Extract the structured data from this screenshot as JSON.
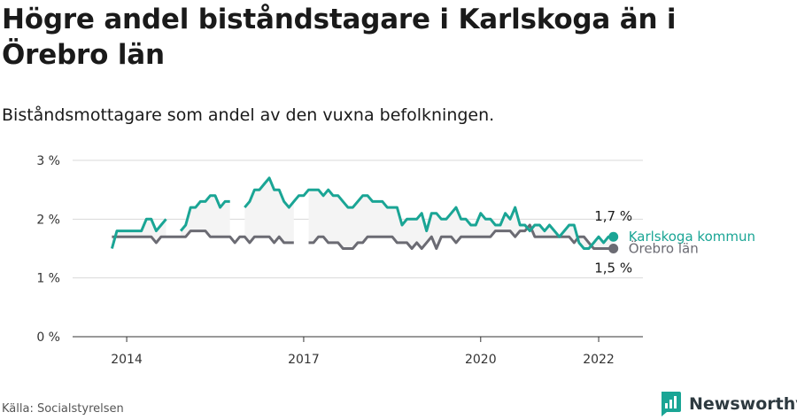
{
  "title": "Högre andel biståndstagare i Karlskoga än i Örebro län",
  "subtitle": "Biståndsmottagare som andel av den vuxna befolkningen.",
  "source": "Källa: Socialstyrelsen",
  "brand": "Newsworthy",
  "colors": {
    "karlskoga": "#1aa595",
    "orebro": "#6b6b73",
    "grid": "#d9d9d9",
    "fill": "#f4f4f4"
  },
  "chart_data": {
    "type": "line",
    "x_unit": "month",
    "x_start": "2013-10",
    "x_end": "2022-04",
    "xlim": [
      "2013-02",
      "2022-10"
    ],
    "ylim": [
      0,
      3
    ],
    "y_ticks": [
      {
        "value": 0,
        "label": "0 %"
      },
      {
        "value": 1,
        "label": "1 %"
      },
      {
        "value": 2,
        "label": "2 %"
      },
      {
        "value": 3,
        "label": "3 %"
      }
    ],
    "x_ticks": [
      {
        "date": "2014-01",
        "label": "2014"
      },
      {
        "date": "2017-01",
        "label": "2017"
      },
      {
        "date": "2020-01",
        "label": "2020"
      },
      {
        "date": "2022-01",
        "label": "2022"
      }
    ],
    "grid": true,
    "series": [
      {
        "name": "Karlskoga kommun",
        "end_label": "1,7 %",
        "values": [
          1.5,
          1.8,
          1.8,
          1.8,
          1.8,
          1.8,
          1.8,
          2.0,
          2.0,
          1.8,
          1.9,
          2.0,
          null,
          null,
          1.8,
          1.9,
          2.2,
          2.2,
          2.3,
          2.3,
          2.4,
          2.4,
          2.2,
          2.3,
          2.3,
          null,
          null,
          2.2,
          2.3,
          2.5,
          2.5,
          2.6,
          2.7,
          2.5,
          2.5,
          2.3,
          2.2,
          2.3,
          2.4,
          2.4,
          2.5,
          2.5,
          2.5,
          2.4,
          2.5,
          2.4,
          2.4,
          2.3,
          2.2,
          2.2,
          2.3,
          2.4,
          2.4,
          2.3,
          2.3,
          2.3,
          2.2,
          2.2,
          2.2,
          1.9,
          2.0,
          2.0,
          2.0,
          2.1,
          1.8,
          2.1,
          2.1,
          2.0,
          2.0,
          2.1,
          2.2,
          2.0,
          2.0,
          1.9,
          1.9,
          2.1,
          2.0,
          2.0,
          1.9,
          1.9,
          2.1,
          2.0,
          2.2,
          1.9,
          1.9,
          1.8,
          1.9,
          1.9,
          1.8,
          1.9,
          1.8,
          1.7,
          1.8,
          1.9,
          1.9,
          1.6,
          1.5,
          1.5,
          1.6,
          1.7,
          1.6,
          1.7,
          1.7
        ]
      },
      {
        "name": "Örebro län",
        "end_label": "1,5 %",
        "values": [
          1.7,
          1.7,
          1.7,
          1.7,
          1.7,
          1.7,
          1.7,
          1.7,
          1.7,
          1.6,
          1.7,
          1.7,
          1.7,
          1.7,
          1.7,
          1.7,
          1.8,
          1.8,
          1.8,
          1.8,
          1.7,
          1.7,
          1.7,
          1.7,
          1.7,
          1.6,
          1.7,
          1.7,
          1.6,
          1.7,
          1.7,
          1.7,
          1.7,
          1.6,
          1.7,
          1.6,
          1.6,
          1.6,
          null,
          null,
          1.6,
          1.6,
          1.7,
          1.7,
          1.6,
          1.6,
          1.6,
          1.5,
          1.5,
          1.5,
          1.6,
          1.6,
          1.7,
          1.7,
          1.7,
          1.7,
          1.7,
          1.7,
          1.6,
          1.6,
          1.6,
          1.5,
          1.6,
          1.5,
          1.6,
          1.7,
          1.5,
          1.7,
          1.7,
          1.7,
          1.6,
          1.7,
          1.7,
          1.7,
          1.7,
          1.7,
          1.7,
          1.7,
          1.8,
          1.8,
          1.8,
          1.8,
          1.7,
          1.8,
          1.8,
          1.9,
          1.7,
          1.7,
          1.7,
          1.7,
          1.7,
          1.7,
          1.7,
          1.7,
          1.6,
          1.7,
          1.7,
          1.6,
          1.5,
          1.5,
          1.5,
          1.5,
          1.5
        ]
      }
    ]
  }
}
